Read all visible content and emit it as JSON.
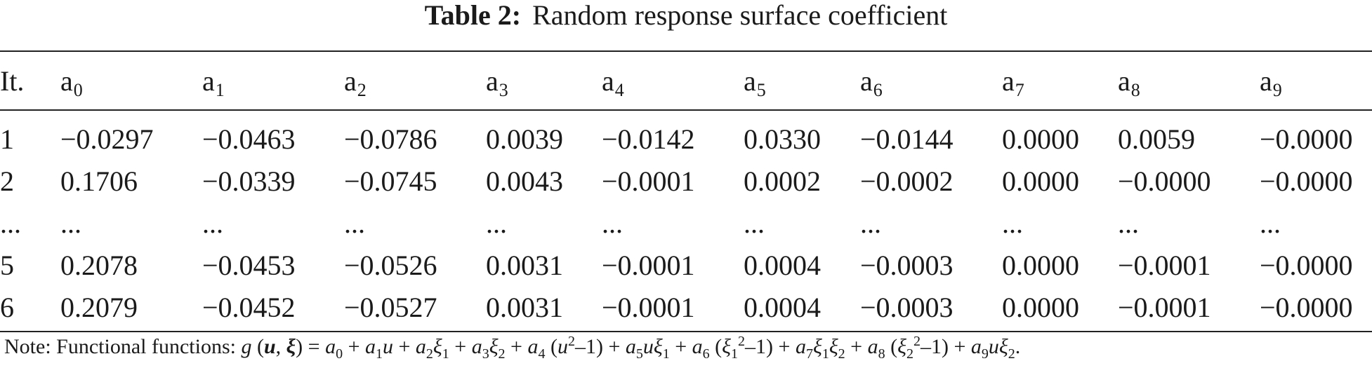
{
  "caption": {
    "label": "Table 2:",
    "title": "Random response surface coefficient"
  },
  "table": {
    "row_header": "It.",
    "columns": [
      {
        "base": "a",
        "sub": "0"
      },
      {
        "base": "a",
        "sub": "1"
      },
      {
        "base": "a",
        "sub": "2"
      },
      {
        "base": "a",
        "sub": "3"
      },
      {
        "base": "a",
        "sub": "4"
      },
      {
        "base": "a",
        "sub": "5"
      },
      {
        "base": "a",
        "sub": "6"
      },
      {
        "base": "a",
        "sub": "7"
      },
      {
        "base": "a",
        "sub": "8"
      },
      {
        "base": "a",
        "sub": "9"
      }
    ],
    "rows": [
      {
        "it": "1",
        "values": [
          "−0.0297",
          "−0.0463",
          "−0.0786",
          "0.0039",
          "−0.0142",
          "0.0330",
          "−0.0144",
          "0.0000",
          "0.0059",
          "−0.0000"
        ]
      },
      {
        "it": "2",
        "values": [
          "0.1706",
          "−0.0339",
          "−0.0745",
          "0.0043",
          "−0.0001",
          "0.0002",
          "−0.0002",
          "0.0000",
          "−0.0000",
          "−0.0000"
        ]
      },
      {
        "it": "...",
        "values": [
          "...",
          "...",
          "...",
          "...",
          "...",
          "...",
          "...",
          "...",
          "...",
          "..."
        ]
      },
      {
        "it": "5",
        "values": [
          "0.2078",
          "−0.0453",
          "−0.0526",
          "0.0031",
          "−0.0001",
          "0.0004",
          "−0.0003",
          "0.0000",
          "−0.0001",
          "−0.0000"
        ]
      },
      {
        "it": "6",
        "values": [
          "0.2079",
          "−0.0452",
          "−0.0527",
          "0.0031",
          "−0.0001",
          "0.0004",
          "−0.0003",
          "0.0000",
          "−0.0001",
          "−0.0000"
        ]
      }
    ]
  },
  "note": {
    "prefix": "Note: Functional functions:",
    "formula_html": "<i>g</i> (<b><i>u</i></b>, <b><i>ξ</i></b>) = <i>a</i><sub>0</sub> + <i>a</i><sub>1</sub><i>u</i> + <i>a</i><sub>2</sub><i>ξ</i><sub>1</sub> + <i>a</i><sub>3</sub><i>ξ</i><sub>2</sub> + <i>a</i><sub>4</sub> (<i>u</i><sup>2</sup>–1) + <i>a</i><sub>5</sub><i>uξ</i><sub>1</sub> + <i>a</i><sub>6</sub> (<i>ξ</i><sub>1</sub><sup>2</sup>–1) + <i>a</i><sub>7</sub><i>ξ</i><sub>1</sub><i>ξ</i><sub>2</sub> + <i>a</i><sub>8</sub> (<i>ξ</i><sub>2</sub><sup>2</sup>–1) + <i>a</i><sub>9</sub><i>uξ</i><sub>2</sub>."
  }
}
